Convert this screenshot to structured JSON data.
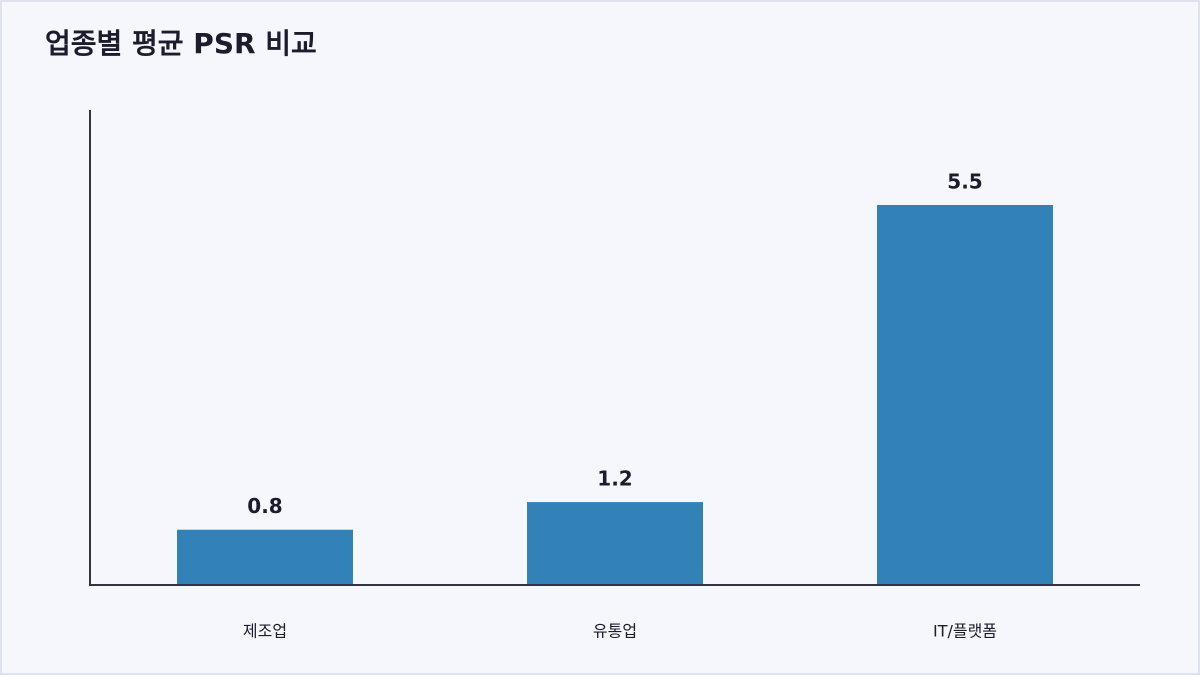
{
  "chart_data": {
    "type": "bar",
    "title": "업종별 평균 PSR 비교",
    "categories": [
      "제조업",
      "유통업",
      "IT/플랫폼"
    ],
    "values": [
      0.8,
      1.2,
      5.5
    ],
    "color": "#3282b8",
    "ylim": [
      0,
      6.875
    ]
  }
}
